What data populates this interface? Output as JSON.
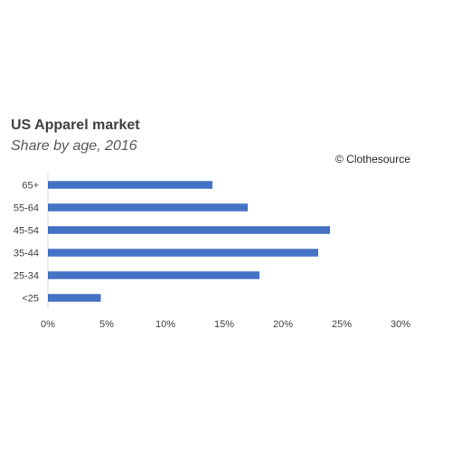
{
  "chart_data": {
    "type": "bar",
    "orientation": "horizontal",
    "title": "US Apparel market",
    "subtitle": "Share by age, 2016",
    "annotation": "© Clothesource",
    "categories": [
      "65+",
      "55-64",
      "45-54",
      "35-44",
      "25-34",
      "<25"
    ],
    "values": [
      14,
      17,
      24,
      23,
      18,
      4.5
    ],
    "xlim": [
      0,
      30
    ],
    "x_ticks": [
      "0%",
      "5%",
      "10%",
      "15%",
      "20%",
      "25%",
      "30%"
    ],
    "x_tick_values": [
      0,
      5,
      10,
      15,
      20,
      25,
      30
    ],
    "grid": false,
    "bar_color": "#4472C4"
  }
}
